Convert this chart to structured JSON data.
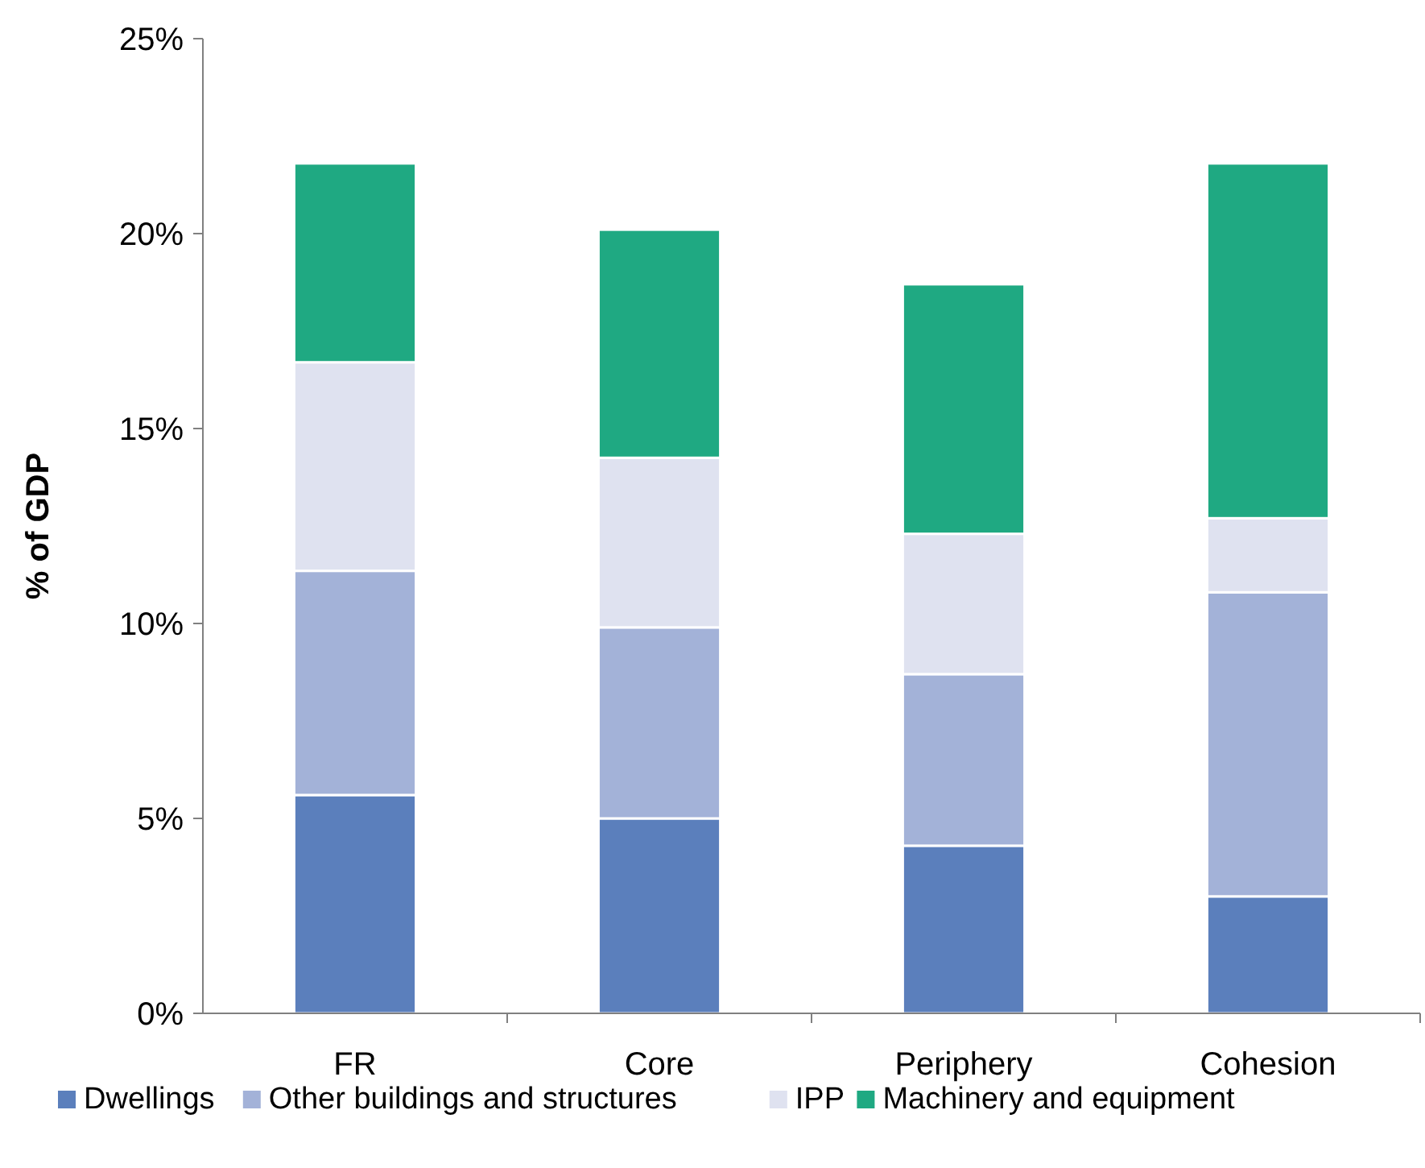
{
  "chart_data": {
    "type": "bar",
    "stacked": true,
    "ylabel": "% of GDP",
    "categories": [
      "FR",
      "Core",
      "Periphery",
      "Cohesion"
    ],
    "series": [
      {
        "name": "Dwellings",
        "color": "#5b7fbc",
        "values": [
          5.6,
          5.0,
          4.3,
          3.0
        ]
      },
      {
        "name": "Other buildings and structures",
        "color": "#a3b2d8",
        "values": [
          5.75,
          4.9,
          4.4,
          7.8
        ]
      },
      {
        "name": "IPP",
        "color": "#dfe2f0",
        "values": [
          5.35,
          4.35,
          3.6,
          1.9
        ]
      },
      {
        "name": "Machinery and equipment",
        "color": "#1fa982",
        "values": [
          5.1,
          5.85,
          6.4,
          9.1
        ]
      }
    ],
    "ylim": [
      0,
      25
    ],
    "yticks": [
      {
        "value": 0,
        "label": "0%"
      },
      {
        "value": 5,
        "label": "5%"
      },
      {
        "value": 10,
        "label": "10%"
      },
      {
        "value": 15,
        "label": "15%"
      },
      {
        "value": 20,
        "label": "20%"
      },
      {
        "value": 25,
        "label": "25%"
      }
    ],
    "grid": false,
    "legend": "bottom"
  }
}
